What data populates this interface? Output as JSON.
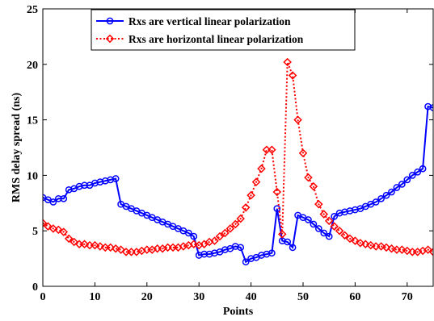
{
  "chart_data": {
    "type": "line",
    "title": "",
    "xlabel": "Points",
    "ylabel": "RMS delay spread (ns)",
    "xlim": [
      0,
      75
    ],
    "ylim": [
      0,
      25
    ],
    "xticks": [
      "0",
      "10",
      "20",
      "30",
      "40",
      "50",
      "60",
      "70"
    ],
    "yticks": [
      "0",
      "5",
      "10",
      "15",
      "20",
      "25"
    ],
    "grid": false,
    "legend_position": "top-center",
    "series": [
      {
        "name": "Rxs are vertical linear polarization",
        "color": "#0000ff",
        "marker": "circle",
        "line_style": "solid",
        "x": [
          0,
          1,
          2,
          3,
          4,
          5,
          6,
          7,
          8,
          9,
          10,
          11,
          12,
          13,
          14,
          15,
          16,
          17,
          18,
          19,
          20,
          21,
          22,
          23,
          24,
          25,
          26,
          27,
          28,
          29,
          30,
          31,
          32,
          33,
          34,
          35,
          36,
          37,
          38,
          39,
          40,
          41,
          42,
          43,
          44,
          45,
          46,
          47,
          48,
          49,
          50,
          51,
          52,
          53,
          54,
          55,
          56,
          57,
          58,
          59,
          60,
          61,
          62,
          63,
          64,
          65,
          66,
          67,
          68,
          69,
          70,
          71,
          72,
          73,
          74,
          75
        ],
        "y": [
          8.0,
          7.8,
          7.6,
          7.9,
          7.9,
          8.7,
          8.8,
          9.0,
          9.1,
          9.1,
          9.3,
          9.4,
          9.5,
          9.6,
          9.7,
          7.4,
          7.2,
          7.0,
          6.8,
          6.6,
          6.4,
          6.2,
          6.0,
          5.8,
          5.6,
          5.4,
          5.2,
          5.0,
          4.8,
          4.5,
          2.8,
          2.9,
          2.9,
          3.0,
          3.1,
          3.3,
          3.4,
          3.6,
          3.5,
          2.2,
          2.5,
          2.6,
          2.8,
          2.9,
          3.0,
          7.0,
          4.1,
          4.0,
          3.5,
          6.4,
          6.2,
          6.0,
          5.6,
          5.2,
          4.8,
          4.5,
          6.3,
          6.6,
          6.7,
          6.8,
          6.9,
          7.0,
          7.2,
          7.4,
          7.6,
          7.9,
          8.2,
          8.5,
          8.9,
          9.2,
          9.6,
          10.0,
          10.3,
          10.6,
          16.2,
          16.1
        ]
      },
      {
        "name": "Rxs are horizontal linear polarization",
        "color": "#ff0000",
        "marker": "diamond",
        "line_style": "dotted",
        "x": [
          0,
          1,
          2,
          3,
          4,
          5,
          6,
          7,
          8,
          9,
          10,
          11,
          12,
          13,
          14,
          15,
          16,
          17,
          18,
          19,
          20,
          21,
          22,
          23,
          24,
          25,
          26,
          27,
          28,
          29,
          30,
          31,
          32,
          33,
          34,
          35,
          36,
          37,
          38,
          39,
          40,
          41,
          42,
          43,
          44,
          45,
          46,
          47,
          48,
          49,
          50,
          51,
          52,
          53,
          54,
          55,
          56,
          57,
          58,
          59,
          60,
          61,
          62,
          63,
          64,
          65,
          66,
          67,
          68,
          69,
          70,
          71,
          72,
          73,
          74,
          75
        ],
        "y": [
          5.7,
          5.4,
          5.2,
          5.1,
          4.9,
          4.3,
          4.0,
          3.8,
          3.8,
          3.7,
          3.7,
          3.6,
          3.5,
          3.5,
          3.4,
          3.3,
          3.1,
          3.1,
          3.1,
          3.2,
          3.3,
          3.3,
          3.4,
          3.4,
          3.5,
          3.5,
          3.5,
          3.6,
          3.7,
          3.8,
          3.7,
          3.8,
          4.0,
          4.1,
          4.5,
          4.8,
          5.2,
          5.6,
          6.1,
          7.1,
          8.2,
          9.4,
          10.6,
          12.3,
          12.3,
          8.5,
          4.7,
          20.2,
          19.0,
          15.0,
          12.0,
          9.8,
          9.0,
          7.4,
          6.5,
          5.9,
          5.4,
          5.0,
          4.6,
          4.3,
          4.1,
          3.9,
          3.8,
          3.7,
          3.6,
          3.6,
          3.5,
          3.4,
          3.3,
          3.3,
          3.2,
          3.1,
          3.1,
          3.2,
          3.3,
          3.1
        ]
      }
    ]
  }
}
